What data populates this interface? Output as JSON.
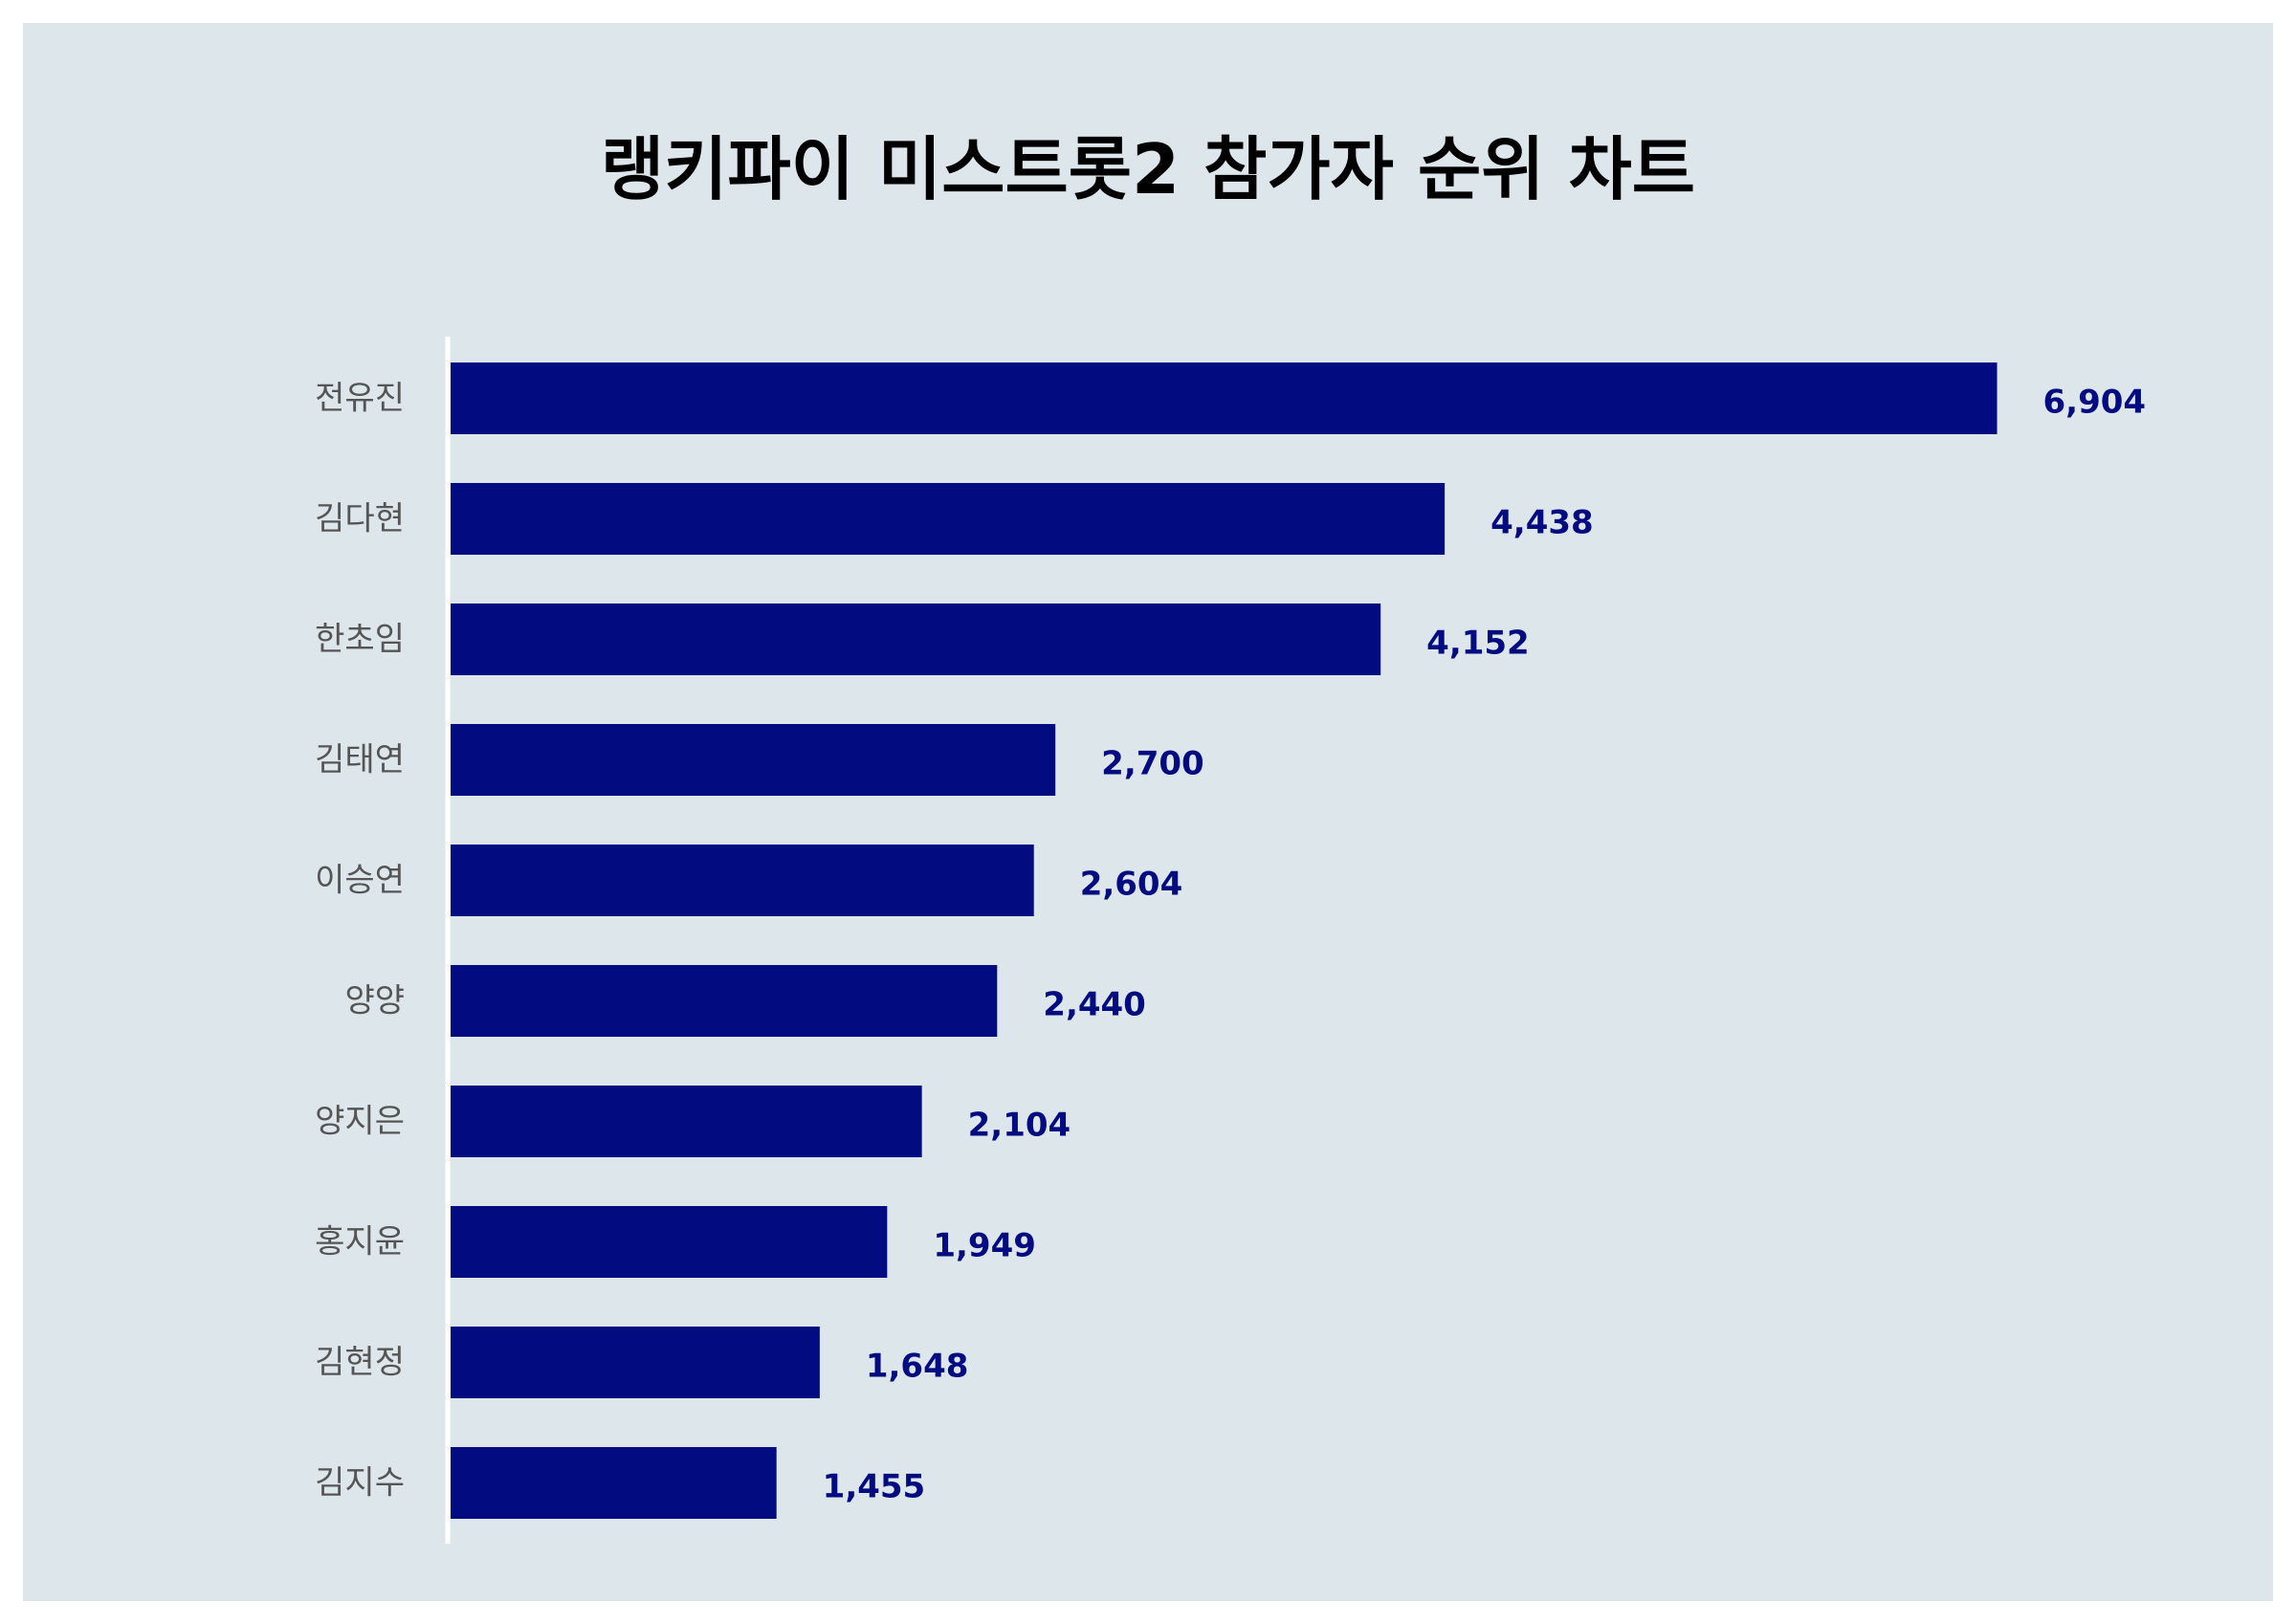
{
  "chart_data": {
    "type": "bar",
    "orientation": "horizontal",
    "title": "랭키파이 미스트롯2 참가자 순위 차트",
    "xlabel": "",
    "ylabel": "",
    "categories": [
      "전유진",
      "김다현",
      "한초임",
      "김태연",
      "이승연",
      "양양",
      "양지은",
      "홍지윤",
      "김현정",
      "김지수"
    ],
    "values": [
      6904,
      4438,
      4152,
      2700,
      2604,
      2440,
      2104,
      1949,
      1648,
      1455
    ],
    "value_labels": [
      "6,904",
      "4,438",
      "4,152",
      "2,700",
      "2,604",
      "2,440",
      "2,104",
      "1,949",
      "1,648",
      "1,455"
    ],
    "xlim": [
      0,
      7000
    ],
    "grid": false,
    "legend": "none"
  },
  "colors": {
    "background": "#dce6eb",
    "bar": "#020b80",
    "value_label": "#020b80",
    "category_label": "#555555",
    "title": "#000000",
    "axis_line": "#ffffff"
  }
}
